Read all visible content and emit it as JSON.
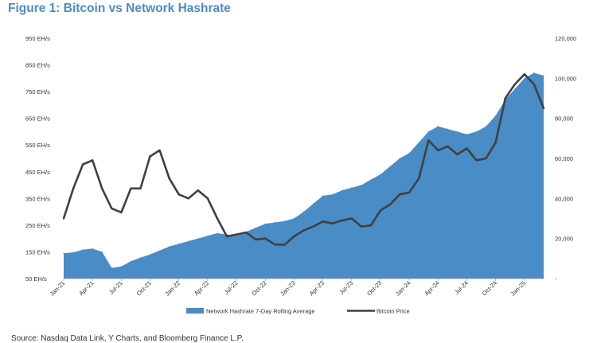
{
  "title": "Figure 1: Bitcoin vs Network Hashrate",
  "source": "Source: Nasdaq Data Link, Y Charts, and Bloomberg Finance L.P.",
  "chart_data": {
    "type": "area",
    "title": "Figure 1: Bitcoin vs Network Hashrate",
    "x_start": "2021-01",
    "x_end": "2025-03",
    "x_tick_labels": [
      "Jan-21",
      "Apr-21",
      "Jul-21",
      "Oct-21",
      "Jan-22",
      "Apr-22",
      "Jul-22",
      "Oct-22",
      "Jan-23",
      "Apr-23",
      "Jul-23",
      "Oct-23",
      "Jan-24",
      "Apr-24",
      "Jul-24",
      "Oct-24",
      "Jan-25"
    ],
    "y_left": {
      "min": 50,
      "max": 950,
      "tick_values": [
        50,
        150,
        250,
        350,
        450,
        550,
        650,
        750,
        850,
        950
      ],
      "tick_labels": [
        "50 EH/s",
        "150 EH/s",
        "250 EH/s",
        "350 EH/s",
        "450 EH/s",
        "550 EH/s",
        "650 EH/s",
        "750 EH/s",
        "850 EH/s",
        "950 EH/s"
      ]
    },
    "y_right": {
      "min": 0,
      "max": 120000,
      "tick_values": [
        0,
        20000,
        40000,
        60000,
        80000,
        100000,
        120000
      ],
      "tick_labels": [
        "-",
        "20,000",
        "40,000",
        "60,000",
        "80,000",
        "100,000",
        "120,000"
      ]
    },
    "legend_position": "bottom-center",
    "grid": false,
    "series": [
      {
        "name": "Network Hashrate 7-Day Rolling Average",
        "kind": "area",
        "axis": "left",
        "color": "#4a8cc6",
        "x": [
          "2021-01",
          "2021-02",
          "2021-03",
          "2021-04",
          "2021-05",
          "2021-06",
          "2021-07",
          "2021-08",
          "2021-09",
          "2021-10",
          "2021-11",
          "2021-12",
          "2022-01",
          "2022-02",
          "2022-03",
          "2022-04",
          "2022-05",
          "2022-06",
          "2022-07",
          "2022-08",
          "2022-09",
          "2022-10",
          "2022-11",
          "2022-12",
          "2023-01",
          "2023-02",
          "2023-03",
          "2023-04",
          "2023-05",
          "2023-06",
          "2023-07",
          "2023-08",
          "2023-09",
          "2023-10",
          "2023-11",
          "2023-12",
          "2024-01",
          "2024-02",
          "2024-03",
          "2024-04",
          "2024-05",
          "2024-06",
          "2024-07",
          "2024-08",
          "2024-09",
          "2024-10",
          "2024-11",
          "2024-12",
          "2025-01",
          "2025-02",
          "2025-03"
        ],
        "y": [
          145,
          148,
          158,
          162,
          150,
          90,
          95,
          115,
          128,
          140,
          155,
          170,
          180,
          190,
          200,
          210,
          220,
          215,
          210,
          225,
          240,
          255,
          260,
          265,
          275,
          300,
          330,
          360,
          365,
          380,
          390,
          400,
          420,
          440,
          470,
          500,
          520,
          560,
          600,
          620,
          610,
          600,
          590,
          600,
          620,
          660,
          720,
          760,
          800,
          820,
          810
        ]
      },
      {
        "name": "Bitcoin Price",
        "kind": "line",
        "axis": "right",
        "color": "#404040",
        "x": [
          "2021-01",
          "2021-02",
          "2021-03",
          "2021-04",
          "2021-05",
          "2021-06",
          "2021-07",
          "2021-08",
          "2021-09",
          "2021-10",
          "2021-11",
          "2021-12",
          "2022-01",
          "2022-02",
          "2022-03",
          "2022-04",
          "2022-05",
          "2022-06",
          "2022-07",
          "2022-08",
          "2022-09",
          "2022-10",
          "2022-11",
          "2022-12",
          "2023-01",
          "2023-02",
          "2023-03",
          "2023-04",
          "2023-05",
          "2023-06",
          "2023-07",
          "2023-08",
          "2023-09",
          "2023-10",
          "2023-11",
          "2023-12",
          "2024-01",
          "2024-02",
          "2024-03",
          "2024-04",
          "2024-05",
          "2024-06",
          "2024-07",
          "2024-08",
          "2024-09",
          "2024-10",
          "2024-11",
          "2024-12",
          "2025-01",
          "2025-02",
          "2025-03"
        ],
        "y": [
          30000,
          45000,
          57000,
          59000,
          45000,
          35000,
          33000,
          45000,
          45000,
          61000,
          64000,
          50000,
          42000,
          40000,
          44000,
          40000,
          30000,
          21000,
          22000,
          23000,
          19500,
          20000,
          17000,
          16800,
          21000,
          24000,
          26000,
          28500,
          27500,
          29000,
          30000,
          26000,
          26500,
          34000,
          37000,
          42000,
          43000,
          50000,
          69000,
          64000,
          66000,
          62000,
          65000,
          59000,
          60000,
          68000,
          90000,
          97000,
          102000,
          97000,
          85000
        ]
      }
    ]
  }
}
